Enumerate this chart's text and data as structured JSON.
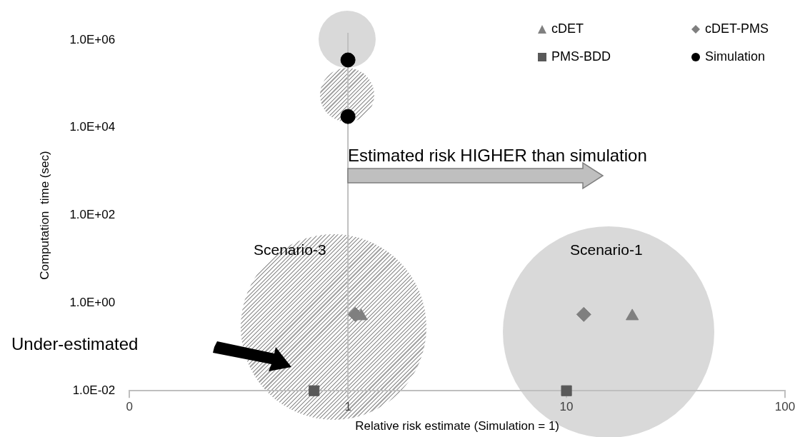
{
  "chart_data": {
    "type": "scatter",
    "xlabel": "Relative risk estimate (Simulation = 1)",
    "ylabel": "Computation  time (sec)",
    "log": "xy",
    "xlim": [
      0.1,
      100
    ],
    "xticks": [
      {
        "value": 0.1,
        "label": "0"
      },
      1,
      10,
      100
    ],
    "ylim": [
      0.01,
      1000000
    ],
    "yticks": [
      {
        "value": 0.01,
        "label": "1.0E-02"
      },
      {
        "value": 1,
        "label": "1.0E+00"
      },
      {
        "value": 100,
        "label": "1.0E+02"
      },
      {
        "value": 10000,
        "label": "1.0E+04"
      },
      {
        "value": 1000000,
        "label": "1.0E+06"
      }
    ],
    "grid": false,
    "legend": "top right",
    "series": [
      {
        "name": "cDET",
        "color": "#808080",
        "marker": "triangle",
        "x": [
          1.15,
          20
        ],
        "values": [
          0.5,
          0.5
        ]
      },
      {
        "name": "cDET-PMS",
        "color": "#7f7f7f",
        "marker": "diamond",
        "x": [
          1.08,
          12
        ],
        "values": [
          0.55,
          0.55
        ]
      },
      {
        "name": "PMS-BDD",
        "color": "#595959",
        "marker": "square",
        "x": [
          0.7,
          10
        ],
        "values": [
          0.01,
          0.01
        ]
      },
      {
        "name": "Simulation",
        "color": "#000000",
        "marker": "circle",
        "x": [
          1,
          1
        ],
        "values": [
          350000,
          18000
        ]
      }
    ],
    "ref_lines": [
      {
        "axis": "x",
        "value": 1,
        "color": "#bfbfbf"
      }
    ],
    "annotations": [
      "Estimated risk HIGHER than simulation",
      "Scenario-3",
      "Scenario-1",
      "Under-estimated"
    ]
  }
}
